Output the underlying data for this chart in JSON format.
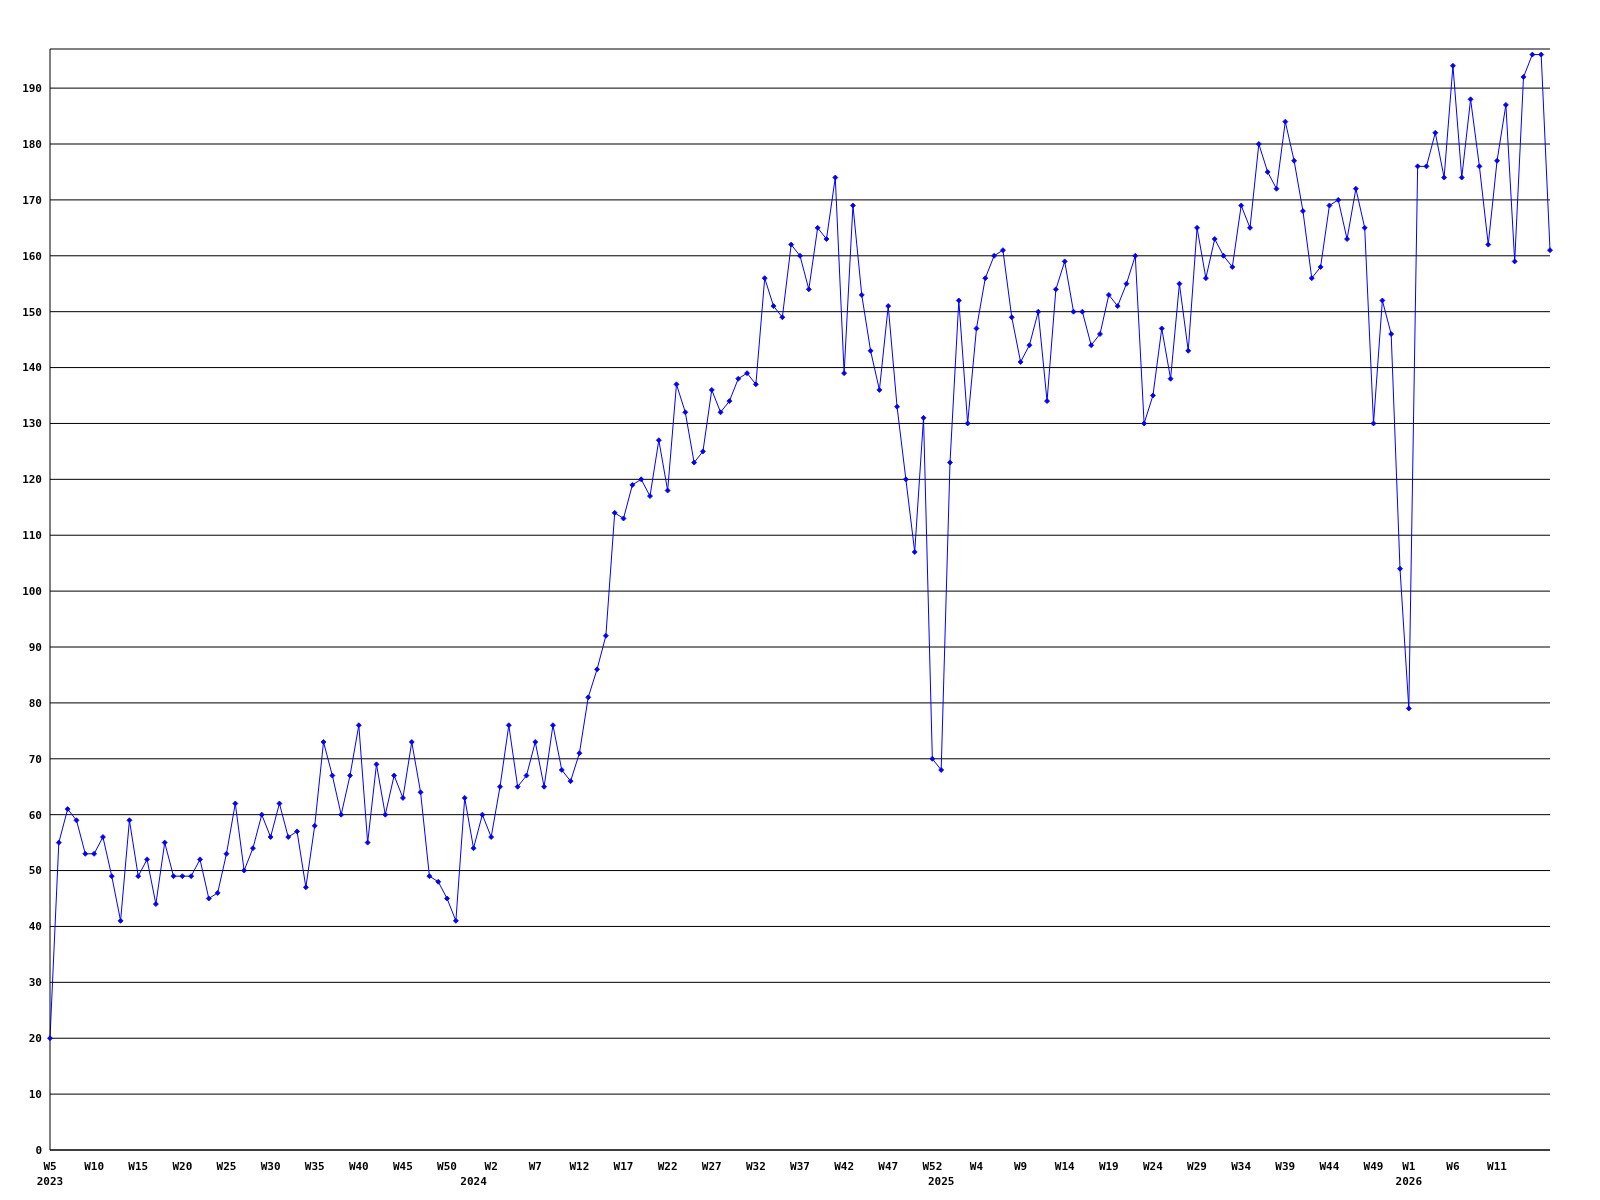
{
  "chart_data": {
    "type": "line",
    "categories": [
      "W5\n2023",
      null,
      null,
      null,
      null,
      "W10",
      null,
      null,
      null,
      null,
      "W15",
      null,
      null,
      null,
      null,
      "W20",
      null,
      null,
      null,
      null,
      "W25",
      null,
      null,
      null,
      null,
      "W30",
      null,
      null,
      null,
      null,
      "W35",
      null,
      null,
      null,
      null,
      "W40",
      null,
      null,
      null,
      null,
      "W45",
      null,
      null,
      null,
      null,
      "W50",
      null,
      null,
      "\n2024",
      null,
      "W2",
      null,
      null,
      null,
      null,
      "W7",
      null,
      null,
      null,
      null,
      "W12",
      null,
      null,
      null,
      null,
      "W17",
      null,
      null,
      null,
      null,
      "W22",
      null,
      null,
      null,
      null,
      "W27",
      null,
      null,
      null,
      null,
      "W32",
      null,
      null,
      null,
      null,
      "W37",
      null,
      null,
      null,
      null,
      "W42",
      null,
      null,
      null,
      null,
      "W47",
      null,
      null,
      null,
      null,
      "W52",
      "\n2025",
      null,
      null,
      null,
      "W4",
      null,
      null,
      null,
      null,
      "W9",
      null,
      null,
      null,
      null,
      "W14",
      null,
      null,
      null,
      null,
      "W19",
      null,
      null,
      null,
      null,
      "W24",
      null,
      null,
      null,
      null,
      "W29",
      null,
      null,
      null,
      null,
      "W34",
      null,
      null,
      null,
      null,
      "W39",
      null,
      null,
      null,
      null,
      "W44",
      null,
      null,
      null,
      null,
      "W49",
      null,
      null,
      null,
      "W1\n2026",
      null,
      null,
      null,
      null,
      "W6",
      null,
      null,
      null,
      null,
      "W11",
      null,
      null,
      null,
      null,
      null,
      null
    ],
    "series": [
      {
        "color": "#0000ff",
        "values": [
          20,
          55,
          61,
          59,
          53,
          53,
          56,
          49,
          41,
          59,
          49,
          52,
          44,
          55,
          49,
          49,
          49,
          52,
          45,
          46,
          53,
          62,
          50,
          54,
          60,
          56,
          62,
          56,
          57,
          47,
          58,
          73,
          67,
          60,
          67,
          76,
          55,
          69,
          60,
          67,
          63,
          73,
          64,
          49,
          48,
          45,
          41,
          63,
          54,
          60,
          56,
          65,
          76,
          65,
          67,
          73,
          65,
          76,
          68,
          66,
          71,
          81,
          86,
          92,
          114,
          113,
          119,
          120,
          117,
          127,
          118,
          137,
          132,
          123,
          125,
          136,
          132,
          134,
          138,
          139,
          137,
          156,
          151,
          149,
          162,
          160,
          154,
          165,
          163,
          174,
          139,
          169,
          153,
          143,
          136,
          151,
          133,
          120,
          107,
          131,
          70,
          68,
          123,
          152,
          130,
          147,
          156,
          160,
          161,
          149,
          141,
          144,
          150,
          134,
          154,
          159,
          150,
          150,
          144,
          146,
          153,
          151,
          155,
          160,
          130,
          135,
          147,
          138,
          155,
          143,
          165,
          156,
          163,
          160,
          158,
          169,
          165,
          180,
          175,
          172,
          184,
          177,
          168,
          156,
          158,
          169,
          170,
          163,
          172,
          165,
          130,
          152,
          146,
          104,
          79,
          176,
          176,
          182,
          174,
          194,
          174,
          188,
          176,
          162,
          177,
          187,
          159,
          192,
          196,
          196,
          161
        ]
      }
    ],
    "ylim": [
      0,
      197
    ],
    "yticks": [
      0,
      10,
      20,
      30,
      40,
      50,
      60,
      70,
      80,
      90,
      100,
      110,
      120,
      130,
      140,
      150,
      160,
      170,
      180,
      190
    ],
    "grid": "y",
    "marker": "diamond",
    "line_style": "solid"
  }
}
